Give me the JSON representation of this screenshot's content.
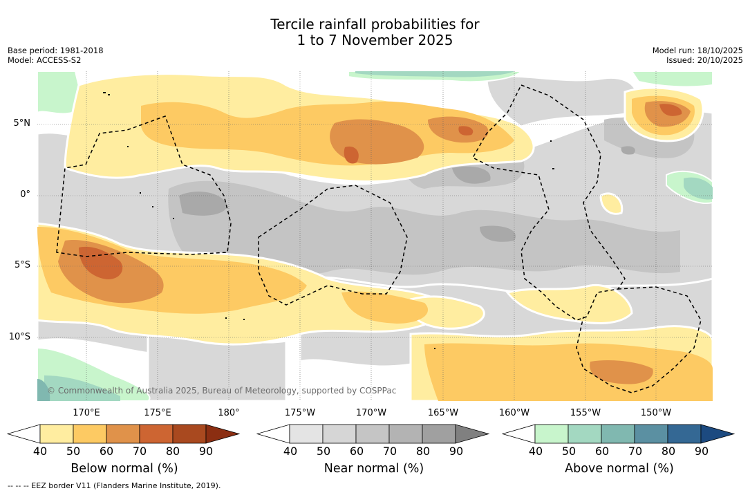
{
  "title": {
    "line1": "Tercile rainfall probabilities for",
    "line2": "1 to 7 November 2025"
  },
  "meta_left": {
    "base_period": "Base period: 1981-2018",
    "model": "Model: ACCESS-S2"
  },
  "meta_right": {
    "model_run": "Model run: 18/10/2025",
    "issued": "Issued: 20/10/2025"
  },
  "map": {
    "lat_labels": [
      "5°N",
      "0°",
      "5°S",
      "10°S"
    ],
    "lon_labels": [
      "170°E",
      "175°E",
      "180°",
      "175°W",
      "170°W",
      "165°W",
      "160°W",
      "155°W",
      "150°W"
    ],
    "copyright": "© Commonwealth of Australia 2025, Bureau of Meteorology, supported by COSPPac"
  },
  "colorbars": [
    {
      "label": "Below normal (%)",
      "ticks": [
        "40",
        "50",
        "60",
        "70",
        "80",
        "90"
      ],
      "colors": [
        "#ffffff",
        "#ffeda0",
        "#fdca63",
        "#e0924a",
        "#cd6532",
        "#a9491f",
        "#8b2e12"
      ]
    },
    {
      "label": "Near normal (%)",
      "ticks": [
        "40",
        "50",
        "60",
        "70",
        "80",
        "90"
      ],
      "colors": [
        "#ffffff",
        "#e4e4e4",
        "#d6d6d6",
        "#c5c5c5",
        "#b3b3b3",
        "#a0a0a0",
        "#808080"
      ]
    },
    {
      "label": "Above normal (%)",
      "ticks": [
        "40",
        "50",
        "60",
        "70",
        "80",
        "90"
      ],
      "colors": [
        "#ffffff",
        "#c8f5cc",
        "#a3d8c1",
        "#80b8b0",
        "#5b90a2",
        "#346894",
        "#1c4a80"
      ]
    }
  ],
  "footer": "-- -- -- EEZ border V11 (Flanders Marine Institute, 2019)."
}
